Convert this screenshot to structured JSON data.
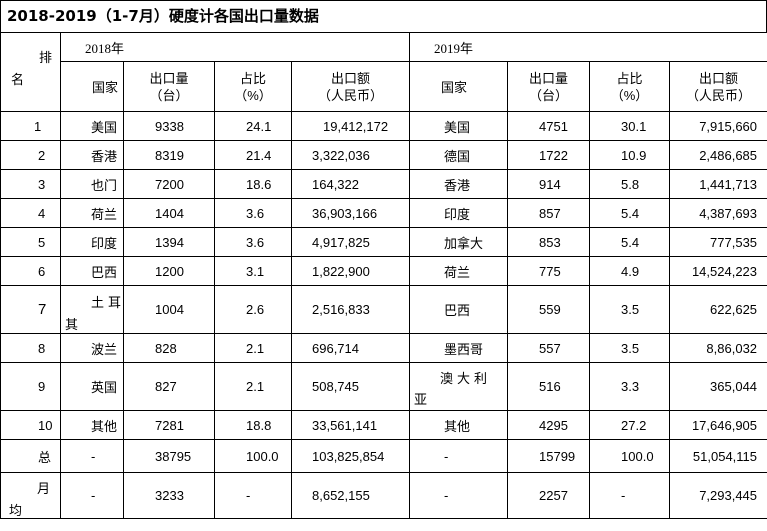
{
  "title": "2018-2019（1-7月）硬度计各国出口量数据",
  "year_left": "2018年",
  "year_right": "2019年",
  "rank_label_top": "排",
  "rank_label_bottom": "名",
  "headers": {
    "country": "国家",
    "qty_line1": "出口量",
    "qty_line2": "（台）",
    "share_line1": "占比",
    "share_line2": "（%）",
    "value_line1": "出口额",
    "value_line2": "（人民币）"
  },
  "rows": [
    {
      "rank": "1",
      "c18": "美国",
      "q18": "9338",
      "s18": "24.1",
      "v18": "19,412,172",
      "c19": "美国",
      "q19": "4751",
      "s19": "30.1",
      "v19": "7,915,660"
    },
    {
      "rank": "2",
      "c18": "香港",
      "q18": "8319",
      "s18": "21.4",
      "v18": "3,322,036",
      "c19": "德国",
      "q19": "1722",
      "s19": "10.9",
      "v19": "2,486,685"
    },
    {
      "rank": "3",
      "c18": "也门",
      "q18": "7200",
      "s18": "18.6",
      "v18": "164,322",
      "c19": "香港",
      "q19": "914",
      "s19": "5.8",
      "v19": "1,441,713"
    },
    {
      "rank": "4",
      "c18": "荷兰",
      "q18": "1404",
      "s18": "3.6",
      "v18": "36,903,166",
      "c19": "印度",
      "q19": "857",
      "s19": "5.4",
      "v19": "4,387,693"
    },
    {
      "rank": "5",
      "c18": "印度",
      "q18": "1394",
      "s18": "3.6",
      "v18": "4,917,825",
      "c19": "加拿大",
      "q19": "853",
      "s19": "5.4",
      "v19": "777,535"
    },
    {
      "rank": "6",
      "c18": "巴西",
      "q18": "1200",
      "s18": "3.1",
      "v18": "1,822,900",
      "c19": "荷兰",
      "q19": "775",
      "s19": "4.9",
      "v19": "14,524,223"
    },
    {
      "rank": "7",
      "c18_a": "土耳",
      "c18_b": "其",
      "q18": "1004",
      "s18": "2.6",
      "v18": "2,516,833",
      "c19": "巴西",
      "q19": "559",
      "s19": "3.5",
      "v19": "622,625"
    },
    {
      "rank": "8",
      "c18": "波兰",
      "q18": "828",
      "s18": "2.1",
      "v18": "696,714",
      "c19": "墨西哥",
      "q19": "557",
      "s19": "3.5",
      "v19": "8,86,032"
    },
    {
      "rank": "9",
      "c18": "英国",
      "q18": "827",
      "s18": "2.1",
      "v18": "508,745",
      "c19_a": "澳大利",
      "c19_b": "亚",
      "q19": "516",
      "s19": "3.3",
      "v19": "365,044"
    },
    {
      "rank": "10",
      "c18": "其他",
      "q18": "7281",
      "s18": "18.8",
      "v18": "33,561,141",
      "c19": "其他",
      "q19": "4295",
      "s19": "27.2",
      "v19": "17,646,905"
    }
  ],
  "total": {
    "label": "总",
    "c18": "-",
    "q18": "38795",
    "s18": "100.0",
    "v18": "103,825,854",
    "c19": "-",
    "q19": "15799",
    "s19": "100.0",
    "v19": "51,054,115"
  },
  "monthly": {
    "label_a": "月",
    "label_b": "均",
    "c18": "-",
    "q18": "3233",
    "s18": "-",
    "v18": "8,652,155",
    "c19": "-",
    "q19": "2257",
    "s19": "-",
    "v19": "7,293,445"
  }
}
